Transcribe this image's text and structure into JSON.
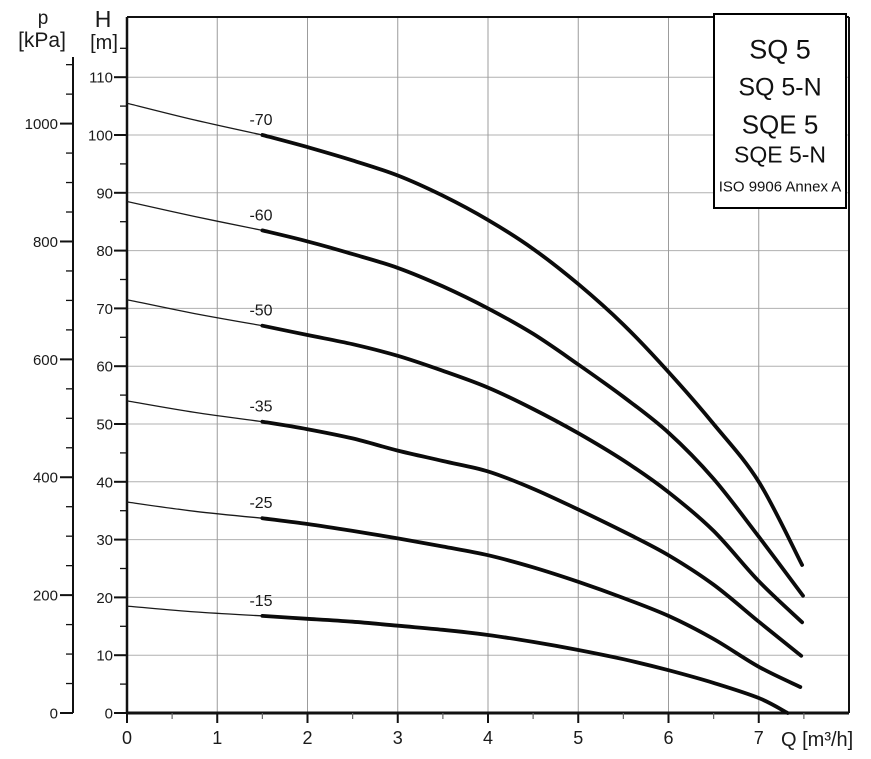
{
  "legend": {
    "models": [
      "SQ 5",
      "SQ 5-N",
      "SQE 5",
      "SQE 5-N"
    ],
    "standard": "ISO 9906 Annex A"
  },
  "axis_labels": {
    "pressure_symbol": "p",
    "pressure_unit": "[kPa]",
    "head_symbol": "H",
    "head_unit": "[m]",
    "flow_label": "Q [m³/h]"
  },
  "tick_labels": {
    "pressure": [
      "0",
      "200",
      "400",
      "600",
      "800",
      "1000"
    ],
    "head": [
      "0",
      "10",
      "20",
      "30",
      "40",
      "50",
      "60",
      "70",
      "80",
      "90",
      "100",
      "110"
    ],
    "flow": [
      "0",
      "1",
      "2",
      "3",
      "4",
      "5",
      "6",
      "7"
    ]
  },
  "styles": {
    "curve_color": "#0b0b0b",
    "thin_curve_color": "#1a1a1a",
    "grid_color_vertical": "#9c9c9c",
    "grid_color_horizontal": "#b0b0b0",
    "axis_color": "#111111",
    "minor_x_tick_color": "#666666"
  },
  "chart_data": {
    "type": "line",
    "title": "SQ 5 / SQ 5-N / SQE 5 / SQE 5-N",
    "annotation": "ISO 9906 Annex A",
    "xlabel": "Q [m³/h]",
    "ylabel_primary": "H [m]",
    "ylabel_secondary": "p [kPa]",
    "xlim": [
      0,
      8
    ],
    "ylim_head_m": [
      0,
      120
    ],
    "x_major_step": 1,
    "x_minor_step": 0.5,
    "head_major_step": 10,
    "head_minor_step": 5,
    "pressure_major_step": 200,
    "pressure_minor_step": 50,
    "pressure_minor_max": 1100,
    "grid": true,
    "legend_position": "top-right",
    "curve_style_note": "each curve drawn thin from Q=0 to Q=1.5, thick from Q=1.5 to end; label above knee at Q=1.5",
    "thin_until_q": 1.5,
    "series": [
      {
        "name": "-70",
        "points": [
          [
            0,
            105.5
          ],
          [
            0.75,
            102.6
          ],
          [
            1.5,
            100
          ],
          [
            2,
            97.9
          ],
          [
            2.5,
            95.6
          ],
          [
            3,
            93
          ],
          [
            3.5,
            89.5
          ],
          [
            4,
            85.3
          ],
          [
            4.5,
            80.3
          ],
          [
            5,
            74.2
          ],
          [
            5.5,
            67.2
          ],
          [
            6,
            59
          ],
          [
            6.5,
            50
          ],
          [
            7,
            40
          ],
          [
            7.48,
            25.6
          ]
        ]
      },
      {
        "name": "-60",
        "points": [
          [
            0,
            88.5
          ],
          [
            0.75,
            85.9
          ],
          [
            1.5,
            83.5
          ],
          [
            2,
            81.6
          ],
          [
            2.5,
            79.4
          ],
          [
            3,
            77
          ],
          [
            3.5,
            73.8
          ],
          [
            4,
            70
          ],
          [
            4.5,
            65.6
          ],
          [
            5,
            60.3
          ],
          [
            5.5,
            54.7
          ],
          [
            6,
            48.5
          ],
          [
            6.5,
            40.5
          ],
          [
            7,
            30.5
          ],
          [
            7.49,
            20.3
          ]
        ]
      },
      {
        "name": "-50",
        "points": [
          [
            0,
            71.5
          ],
          [
            0.75,
            69.1
          ],
          [
            1.5,
            67
          ],
          [
            2,
            65.4
          ],
          [
            2.5,
            63.8
          ],
          [
            3,
            61.8
          ],
          [
            3.5,
            59.2
          ],
          [
            4,
            56.3
          ],
          [
            4.5,
            52.6
          ],
          [
            5,
            48.4
          ],
          [
            5.5,
            43.7
          ],
          [
            6,
            38.2
          ],
          [
            6.5,
            31.5
          ],
          [
            7,
            22.8
          ],
          [
            7.48,
            15.7
          ]
        ]
      },
      {
        "name": "-35",
        "points": [
          [
            0,
            54
          ],
          [
            0.75,
            52
          ],
          [
            1.5,
            50.4
          ],
          [
            2,
            49.1
          ],
          [
            2.5,
            47.5
          ],
          [
            3,
            45.4
          ],
          [
            3.5,
            43.6
          ],
          [
            4,
            41.8
          ],
          [
            4.5,
            38.8
          ],
          [
            5,
            35.2
          ],
          [
            5.5,
            31.4
          ],
          [
            6,
            27.3
          ],
          [
            6.5,
            22.2
          ],
          [
            7,
            15.8
          ],
          [
            7.47,
            9.9
          ]
        ]
      },
      {
        "name": "-25",
        "points": [
          [
            0,
            36.5
          ],
          [
            0.75,
            34.9
          ],
          [
            1.5,
            33.7
          ],
          [
            2,
            32.7
          ],
          [
            2.5,
            31.5
          ],
          [
            3,
            30.2
          ],
          [
            3.5,
            28.8
          ],
          [
            4,
            27.3
          ],
          [
            4.5,
            25.2
          ],
          [
            5,
            22.7
          ],
          [
            5.5,
            19.9
          ],
          [
            6,
            16.8
          ],
          [
            6.5,
            12.8
          ],
          [
            7,
            8
          ],
          [
            7.46,
            4.5
          ]
        ]
      },
      {
        "name": "-15",
        "points": [
          [
            0,
            18.5
          ],
          [
            0.75,
            17.5
          ],
          [
            1.5,
            16.8
          ],
          [
            2,
            16.3
          ],
          [
            2.5,
            15.8
          ],
          [
            3,
            15.1
          ],
          [
            3.5,
            14.4
          ],
          [
            4,
            13.5
          ],
          [
            4.5,
            12.3
          ],
          [
            5,
            10.9
          ],
          [
            5.5,
            9.3
          ],
          [
            6,
            7.4
          ],
          [
            6.5,
            5.2
          ],
          [
            7,
            2.6
          ],
          [
            7.32,
            0
          ]
        ]
      }
    ]
  }
}
